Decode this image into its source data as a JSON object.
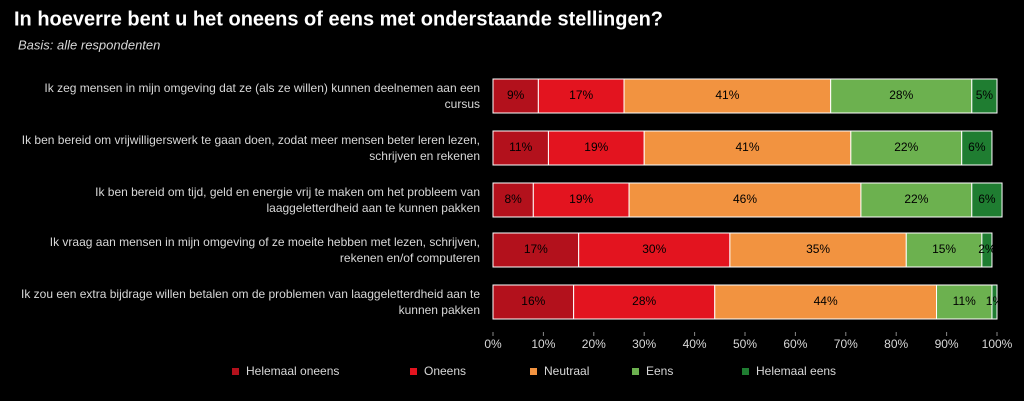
{
  "chart_data": {
    "type": "stacked-bar-horizontal",
    "title": "In hoeverre bent u het oneens of eens met onderstaande stellingen?",
    "subtitle": "Basis: alle respondenten",
    "categories": [
      "Ik zeg mensen in mijn omgeving dat ze (als ze willen) kunnen deelnemen aan een cursus",
      "Ik ben bereid om vrijwilligerswerk te gaan doen, zodat meer mensen beter leren lezen, schrijven en rekenen",
      "Ik ben bereid om tijd, geld en energie vrij te maken om het probleem van laaggeletterdheid aan te kunnen pakken",
      "Ik vraag aan mensen in mijn omgeving of ze moeite hebben met lezen, schrijven, rekenen en/of computeren",
      "Ik zou een extra bijdrage willen betalen om de problemen van laaggeletterdheid aan te kunnen pakken"
    ],
    "series": [
      {
        "name": "Helemaal oneens",
        "color": "#b3111c",
        "values": [
          9,
          11,
          8,
          17,
          16
        ],
        "value_labels": [
          "9%",
          "11%",
          "8%",
          "17%",
          "16%"
        ]
      },
      {
        "name": "Oneens",
        "color": "#e3141f",
        "values": [
          17,
          19,
          19,
          30,
          28
        ],
        "value_labels": [
          "17%",
          "19%",
          "19%",
          "30%",
          "28%"
        ]
      },
      {
        "name": "Neutraal",
        "color": "#f29340",
        "values": [
          41,
          41,
          46,
          35,
          44
        ],
        "value_labels": [
          "41%",
          "41%",
          "46%",
          "35%",
          "44%"
        ]
      },
      {
        "name": "Eens",
        "color": "#6cb14f",
        "values": [
          28,
          22,
          22,
          15,
          11
        ],
        "value_labels": [
          "28%",
          "22%",
          "22%",
          "15%",
          "11%"
        ]
      },
      {
        "name": "Helemaal eens",
        "color": "#1f7d31",
        "values": [
          5,
          6,
          6,
          2,
          1
        ],
        "value_labels": [
          "5%",
          "6%",
          "6%",
          "2%",
          "1%"
        ]
      }
    ],
    "xlim": [
      0,
      100
    ],
    "xticks": [
      {
        "value": 0,
        "label": "0%"
      },
      {
        "value": 10,
        "label": "10%"
      },
      {
        "value": 20,
        "label": "20%"
      },
      {
        "value": 30,
        "label": "30%"
      },
      {
        "value": 40,
        "label": "40%"
      },
      {
        "value": 50,
        "label": "50%"
      },
      {
        "value": 60,
        "label": "60%"
      },
      {
        "value": 70,
        "label": "70%"
      },
      {
        "value": 80,
        "label": "80%"
      },
      {
        "value": 90,
        "label": "90%"
      },
      {
        "value": 100,
        "label": "100%"
      }
    ]
  }
}
